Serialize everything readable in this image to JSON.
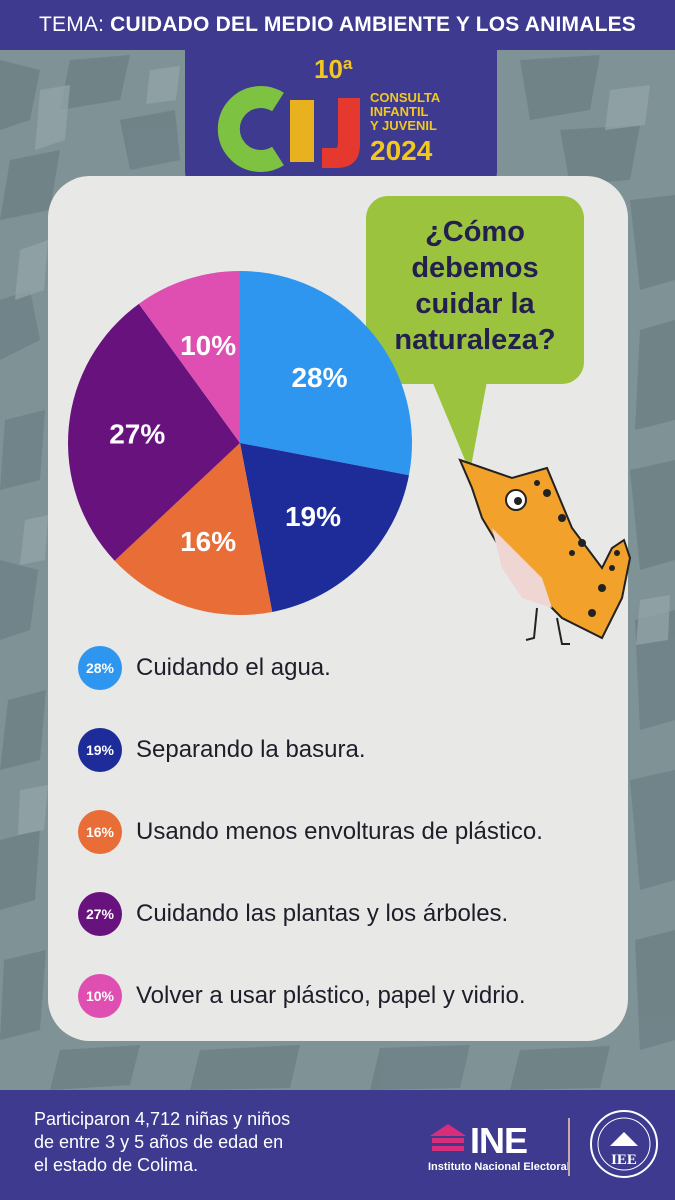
{
  "header": {
    "topic_label": "TEMA:",
    "topic_value": "CUIDADO DEL MEDIO AMBIENTE Y LOS ANIMALES"
  },
  "logo": {
    "edition": "10ª",
    "acronym": "CIJ",
    "line1": "CONSULTA",
    "line2": "INFANTIL",
    "line3": "Y JUVENIL",
    "year": "2024"
  },
  "question": {
    "line1": "¿Cómo",
    "line2": "debemos",
    "line3": "cuidar la",
    "line4": "naturaleza?"
  },
  "chart_data": {
    "type": "pie",
    "title": "¿Cómo debemos cuidar la naturaleza?",
    "slices": [
      {
        "label": "Cuidando el agua.",
        "value": 28,
        "display": "28%",
        "color": "#2e96ee"
      },
      {
        "label": "Separando la basura.",
        "value": 19,
        "display": "19%",
        "color": "#1d2c99"
      },
      {
        "label": "Usando menos envolturas de plástico.",
        "value": 16,
        "display": "16%",
        "color": "#e86d36"
      },
      {
        "label": "Cuidando las plantas y los árboles.",
        "value": 27,
        "display": "27%",
        "color": "#68137d"
      },
      {
        "label": "Volver a usar plástico, papel y vidrio.",
        "value": 10,
        "display": "10%",
        "color": "#df4fb2"
      }
    ]
  },
  "footer": {
    "line1": "Participaron 4,712 niñas y niños",
    "line2": "de entre 3 y 5 años de edad en",
    "line3": "el estado de Colima.",
    "ine_name": "INE",
    "ine_full": "Instituto Nacional Electoral",
    "iee_name": "IEE"
  },
  "colors": {
    "navy": "#3d3a8f",
    "card": "#e8e9e7",
    "bubble": "#9cc33d",
    "background": "#7f9296"
  }
}
